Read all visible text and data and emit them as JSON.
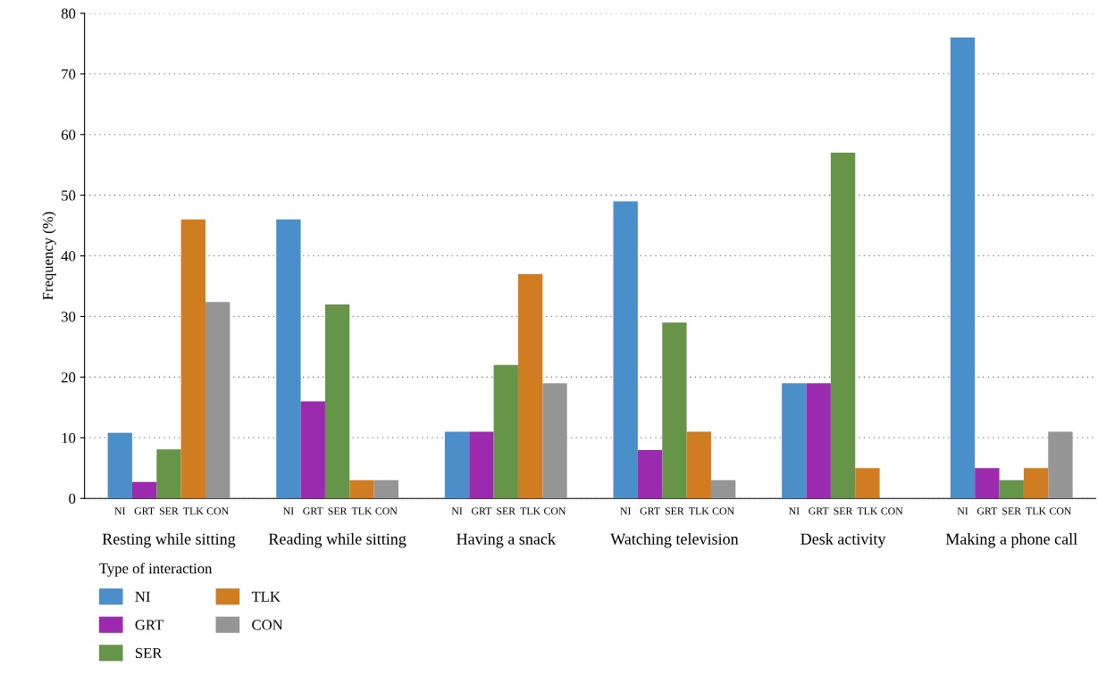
{
  "chart_data": {
    "type": "bar",
    "ylabel": "Frequency (%)",
    "legend_title": "Type of interaction",
    "categories": [
      "Resting while sitting",
      "Reading while sitting",
      "Having a snack",
      "Watching television",
      "Desk activity",
      "Making a phone call"
    ],
    "series": [
      {
        "name": "NI",
        "color": "#4a8fc9",
        "values": [
          10.8,
          46,
          11,
          49,
          19,
          76
        ]
      },
      {
        "name": "GRT",
        "color": "#9b2aaf",
        "values": [
          2.7,
          16,
          11,
          8,
          19,
          5
        ]
      },
      {
        "name": "SER",
        "color": "#66954a",
        "values": [
          8.1,
          32,
          22,
          29,
          57,
          3
        ]
      },
      {
        "name": "TLK",
        "color": "#d07d22",
        "values": [
          46,
          3,
          37,
          11,
          5,
          5
        ]
      },
      {
        "name": "CON",
        "color": "#959595",
        "values": [
          32.4,
          3,
          19,
          3,
          0,
          11
        ]
      }
    ],
    "ylim": [
      0,
      80
    ],
    "yticks": [
      0,
      10,
      20,
      30,
      40,
      50,
      60,
      70,
      80
    ],
    "grid": "y",
    "legend": "bottom left"
  }
}
